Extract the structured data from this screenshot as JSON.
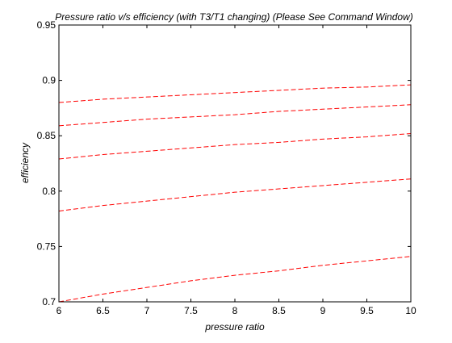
{
  "chart_data": {
    "type": "line",
    "title": "Pressure ratio v/s efficiency (with T3/T1 changing) (Please See Command Window)",
    "xlabel": "pressure ratio",
    "ylabel": "efficiency",
    "xlim": [
      6,
      10
    ],
    "ylim": [
      0.7,
      0.95
    ],
    "xticks": [
      6,
      6.5,
      7,
      7.5,
      8,
      8.5,
      9,
      9.5,
      10
    ],
    "xtick_labels": [
      "6",
      "6.5",
      "7",
      "7.5",
      "8",
      "8.5",
      "9",
      "9.5",
      "10"
    ],
    "yticks": [
      0.7,
      0.75,
      0.8,
      0.85,
      0.9,
      0.95
    ],
    "ytick_labels": [
      "0.7",
      "0.75",
      "0.8",
      "0.85",
      "0.9",
      "0.95"
    ],
    "grid": false,
    "line_style": "dashed",
    "line_color": "#ff0000",
    "x": [
      6,
      6.5,
      7,
      7.5,
      8,
      8.5,
      9,
      9.5,
      10
    ],
    "series": [
      {
        "values": [
          0.88,
          0.883,
          0.885,
          0.887,
          0.889,
          0.891,
          0.893,
          0.894,
          0.896
        ]
      },
      {
        "values": [
          0.859,
          0.862,
          0.865,
          0.867,
          0.869,
          0.872,
          0.874,
          0.876,
          0.878
        ]
      },
      {
        "values": [
          0.829,
          0.833,
          0.836,
          0.839,
          0.842,
          0.844,
          0.847,
          0.849,
          0.852
        ]
      },
      {
        "values": [
          0.782,
          0.787,
          0.791,
          0.795,
          0.799,
          0.802,
          0.805,
          0.808,
          0.811
        ]
      },
      {
        "values": [
          0.7,
          0.707,
          0.713,
          0.719,
          0.724,
          0.728,
          0.733,
          0.737,
          0.741
        ]
      }
    ]
  }
}
